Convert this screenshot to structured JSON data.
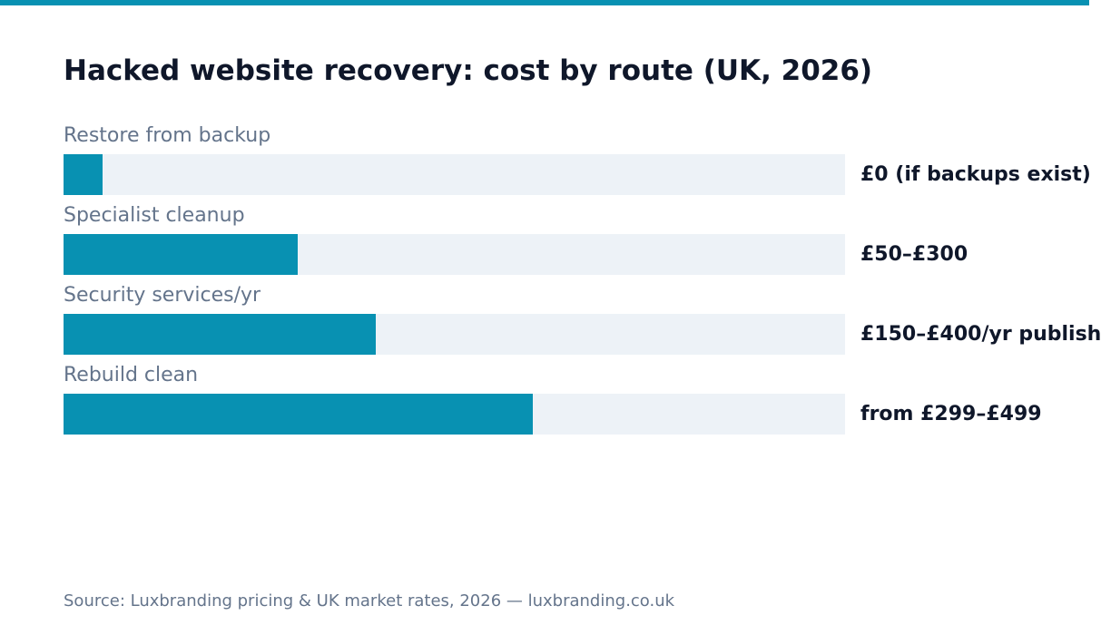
{
  "chart_data": {
    "type": "bar",
    "orientation": "horizontal",
    "title": "Hacked website recovery: cost by route (UK, 2026)",
    "categories": [
      "Restore from backup",
      "Specialist cleanup",
      "Security services/yr",
      "Rebuild clean"
    ],
    "values": [
      0.05,
      0.3,
      0.4,
      0.6
    ],
    "value_labels": [
      "£0 (if backups exist)",
      "£50–£300",
      "£150–£400/yr publish",
      "from £299–£499"
    ],
    "xlim": [
      0,
      1
    ],
    "grid": false,
    "legend": "none",
    "colors": {
      "accent": "#0891b2",
      "track": "#edf2f7",
      "title": "#0f172a",
      "label": "#64748b"
    }
  },
  "source": "Source: Luxbranding pricing & UK market rates, 2026 — luxbranding.co.uk"
}
